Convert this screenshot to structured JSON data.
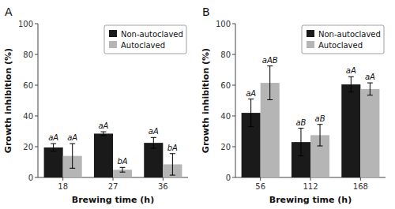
{
  "chart_data": [
    {
      "type": "bar",
      "title": "A",
      "categories": [
        "18",
        "27",
        "36"
      ],
      "series": [
        {
          "name": "Non-autoclaved",
          "color": "#1a1a1a",
          "values": [
            19.5,
            28.5,
            22.5
          ],
          "errors": [
            2.5,
            1.2,
            3.5
          ],
          "annotations": [
            "aA",
            "aA",
            "aA"
          ]
        },
        {
          "name": "Autoclaved",
          "color": "#b5b5b5",
          "values": [
            14.0,
            5.0,
            8.5
          ],
          "errors": [
            8.0,
            1.5,
            7.0
          ],
          "annotations": [
            "aA",
            "bA",
            "bA"
          ]
        }
      ],
      "x_label": "Brewing time (h)",
      "y_label": "Growth inhibition (%)",
      "ylim": [
        0,
        100
      ],
      "yticks": [
        0,
        20,
        40,
        60,
        80,
        100
      ],
      "grid": false,
      "legend": "upper right"
    },
    {
      "type": "bar",
      "title": "B",
      "categories": [
        "56",
        "112",
        "168"
      ],
      "series": [
        {
          "name": "Non-autoclaved",
          "color": "#1a1a1a",
          "values": [
            42.0,
            23.0,
            60.5
          ],
          "errors": [
            9.0,
            9.0,
            5.0
          ],
          "annotations": [
            "aA",
            "aB",
            "aA"
          ]
        },
        {
          "name": "Autoclaved",
          "color": "#b5b5b5",
          "values": [
            61.5,
            27.5,
            57.5
          ],
          "errors": [
            11.0,
            7.0,
            4.0
          ],
          "annotations": [
            "aAB",
            "aB",
            "aA"
          ]
        }
      ],
      "x_label": "Brewing time (h)",
      "y_label": "Growth inhibition (%)",
      "ylim": [
        0,
        100
      ],
      "yticks": [
        0,
        20,
        40,
        60,
        80,
        100
      ],
      "grid": false,
      "legend": "upper right"
    }
  ]
}
